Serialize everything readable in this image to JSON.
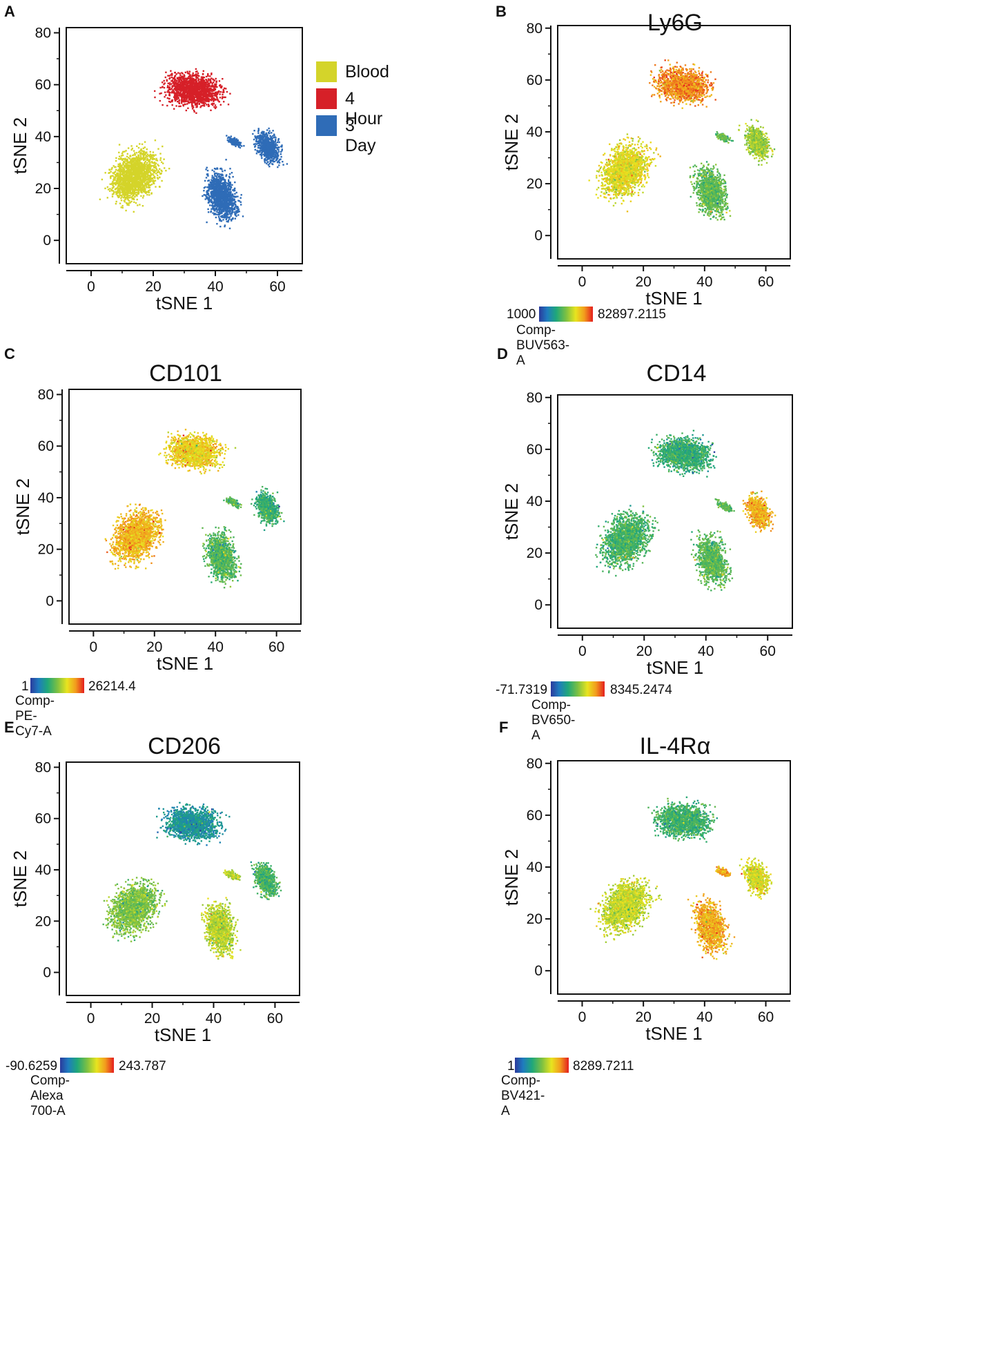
{
  "chart_data": [
    {
      "id": "A",
      "letter": "A",
      "type": "scatter",
      "title": "",
      "xlabel": "tSNE 1",
      "ylabel": "tSNE 2",
      "xticks": [
        "0",
        "20",
        "40",
        "60"
      ],
      "yticks": [
        "0",
        "20",
        "40",
        "60",
        "80"
      ],
      "xlim": [
        -8,
        68
      ],
      "ylim": [
        -9,
        82
      ],
      "legend": [
        {
          "label": "Blood",
          "color": "#d4d42a"
        },
        {
          "label": "4 Hour",
          "color": "#d62028"
        },
        {
          "label": "3 Day",
          "color": "#2f6cb7"
        }
      ],
      "colorbar": null
    },
    {
      "id": "B",
      "letter": "B",
      "type": "scatter",
      "title": "Ly6G",
      "xlabel": "tSNE 1",
      "ylabel": "tSNE 2",
      "xticks": [
        "0",
        "20",
        "40",
        "60"
      ],
      "yticks": [
        "0",
        "20",
        "40",
        "60",
        "80"
      ],
      "xlim": [
        -8,
        68
      ],
      "ylim": [
        -9,
        81
      ],
      "colorbar": {
        "min": "1000",
        "max": "82897.2115",
        "channel": "Comp-BUV563-A"
      },
      "cluster_intensity": {
        "blood": 0.68,
        "hour4": 0.86,
        "day3": 0.45,
        "day3_upper": 0.55
      }
    },
    {
      "id": "C",
      "letter": "C",
      "type": "scatter",
      "title": "CD101",
      "xlabel": "tSNE 1",
      "ylabel": "tSNE 2",
      "xticks": [
        "0",
        "20",
        "40",
        "60"
      ],
      "yticks": [
        "0",
        "20",
        "40",
        "60",
        "80"
      ],
      "xlim": [
        -8,
        68
      ],
      "ylim": [
        -9,
        82
      ],
      "colorbar": {
        "min": "1",
        "max": "26214.4",
        "channel": "Comp-PE-Cy7-A"
      },
      "cluster_intensity": {
        "blood": 0.78,
        "hour4": 0.72,
        "day3": 0.42,
        "day3_upper": 0.36
      }
    },
    {
      "id": "D",
      "letter": "D",
      "type": "scatter",
      "title": "CD14",
      "xlabel": "tSNE 1",
      "ylabel": "tSNE 2",
      "xticks": [
        "0",
        "20",
        "40",
        "60"
      ],
      "yticks": [
        "0",
        "20",
        "40",
        "60",
        "80"
      ],
      "xlim": [
        -8,
        68
      ],
      "ylim": [
        -9,
        81
      ],
      "colorbar": {
        "min": "-71.7319",
        "max": "8345.2474",
        "channel": "Comp-BV650-A"
      },
      "cluster_intensity": {
        "blood": 0.4,
        "hour4": 0.36,
        "day3": 0.44,
        "day3_upper": 0.8
      }
    },
    {
      "id": "E",
      "letter": "E",
      "type": "scatter",
      "title": "CD206",
      "xlabel": "tSNE 1",
      "ylabel": "tSNE 2",
      "xticks": [
        "0",
        "20",
        "40",
        "60"
      ],
      "yticks": [
        "0",
        "20",
        "40",
        "60",
        "80"
      ],
      "xlim": [
        -8,
        68
      ],
      "ylim": [
        -9,
        82
      ],
      "colorbar": {
        "min": "-90.6259",
        "max": "243.787",
        "channel": "Comp-Alexa 700-A"
      },
      "cluster_intensity": {
        "blood": 0.5,
        "hour4": 0.25,
        "day3": 0.6,
        "day3_upper": 0.4
      }
    },
    {
      "id": "F",
      "letter": "F",
      "type": "scatter",
      "title": "IL-4Rα",
      "xlabel": "tSNE 1",
      "ylabel": "tSNE 2",
      "xticks": [
        "0",
        "20",
        "40",
        "60"
      ],
      "yticks": [
        "0",
        "20",
        "40",
        "60",
        "80"
      ],
      "xlim": [
        -8,
        68
      ],
      "ylim": [
        -9,
        81
      ],
      "colorbar": {
        "min": "1",
        "max": "8289.7211",
        "channel": "Comp-BV421-A"
      },
      "cluster_intensity": {
        "blood": 0.62,
        "hour4": 0.38,
        "day3": 0.8,
        "day3_upper": 0.65
      }
    }
  ]
}
